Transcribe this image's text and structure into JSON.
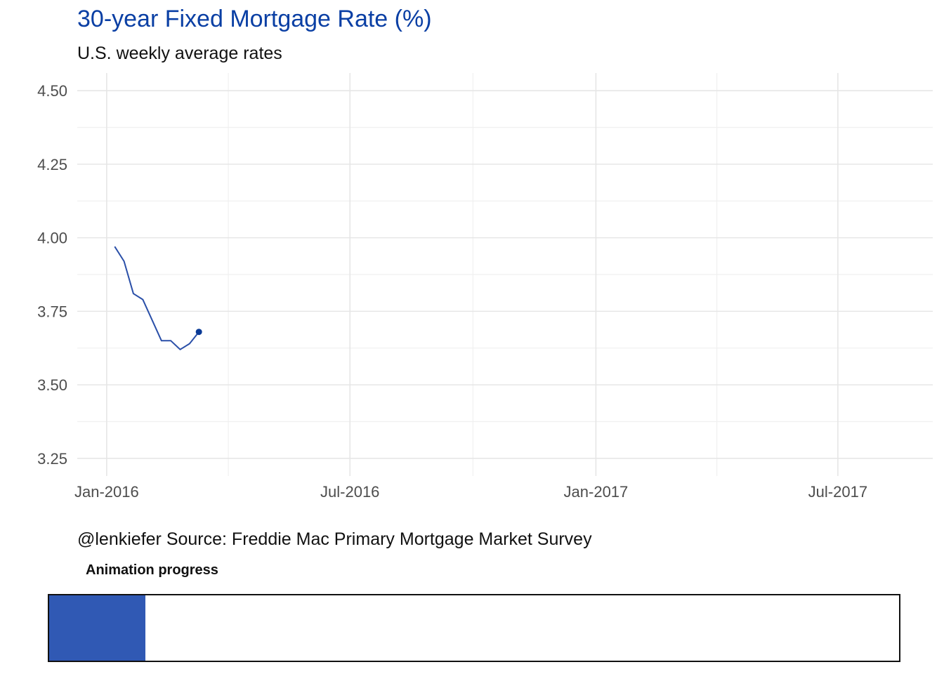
{
  "chart_data": {
    "type": "line",
    "title": "30-year Fixed Mortgage Rate (%)",
    "subtitle": "U.S. weekly average rates",
    "caption": "@lenkiefer Source: Freddie Mac Primary Mortgage Market Survey",
    "xlabel": "",
    "ylabel": "",
    "xlim": [
      "2015-12-10",
      "2017-09-10"
    ],
    "ylim": [
      3.19,
      4.56
    ],
    "x_ticks": [
      {
        "date": "2016-01-01",
        "label": "Jan-2016"
      },
      {
        "date": "2016-07-01",
        "label": "Jul-2016"
      },
      {
        "date": "2017-01-01",
        "label": "Jan-2017"
      },
      {
        "date": "2017-07-01",
        "label": "Jul-2017"
      }
    ],
    "y_ticks": [
      3.25,
      3.5,
      3.75,
      4.0,
      4.25,
      4.5
    ],
    "y_tick_labels": [
      "3.25",
      "3.50",
      "3.75",
      "4.00",
      "4.25",
      "4.50"
    ],
    "grid": true,
    "series": [
      {
        "color": "#2a4fa8",
        "x": [
          "2016-01-07",
          "2016-01-14",
          "2016-01-21",
          "2016-01-28",
          "2016-02-04",
          "2016-02-11",
          "2016-02-18",
          "2016-02-25",
          "2016-03-03",
          "2016-03-10"
        ],
        "y": [
          3.97,
          3.92,
          3.81,
          3.79,
          3.72,
          3.65,
          3.65,
          3.62,
          3.64,
          3.68
        ]
      }
    ],
    "last_point_color": "#0a3a96"
  },
  "progress": {
    "label": "Animation progress",
    "fraction": 0.113,
    "fill_color": "#3059b4"
  }
}
